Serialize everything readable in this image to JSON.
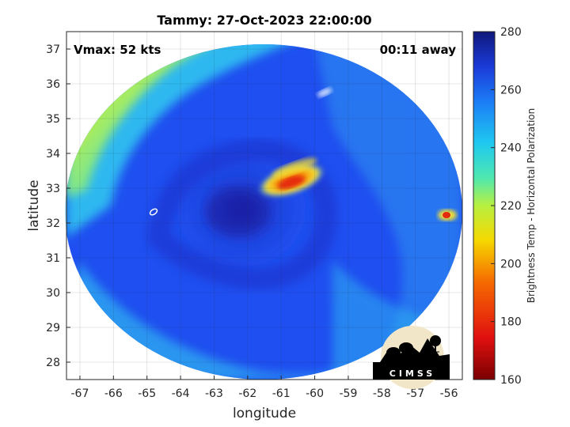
{
  "title": "Tammy: 27-Oct-2023 22:00:00",
  "vmax_label": "Vmax: 52 kts",
  "away_label": "00:11 away",
  "xlabel": "longitude",
  "ylabel": "latitude",
  "x_ticks": [
    "-67",
    "-66",
    "-65",
    "-64",
    "-63",
    "-62",
    "-61",
    "-60",
    "-59",
    "-58",
    "-57",
    "-56"
  ],
  "y_ticks": [
    "28",
    "29",
    "30",
    "31",
    "32",
    "33",
    "34",
    "35",
    "36",
    "37"
  ],
  "colorbar": {
    "label": "Brightness Temp - Horizontal Polarization",
    "ticks": [
      "160",
      "180",
      "200",
      "220",
      "240",
      "260",
      "280"
    ],
    "range": [
      160,
      280
    ]
  },
  "logo_text": "CIMSS",
  "colors": {
    "dark_blue": "#1a1f9e",
    "blue": "#1f4ff0",
    "cyan": "#2fb8f0",
    "green": "#4fdc9a",
    "yellow": "#f5e030",
    "red": "#e52a10"
  },
  "chart_data": {
    "type": "heatmap",
    "title": "Tammy: 27-Oct-2023 22:00:00",
    "xlabel": "longitude",
    "ylabel": "latitude",
    "xlim": [
      -67.4,
      -55.6
    ],
    "ylim": [
      27.5,
      37.5
    ],
    "colorbar_range": [
      160,
      280
    ],
    "colorbar_label": "Brightness Temp - Horizontal Polarization",
    "grid": true,
    "annotations": [
      "Vmax: 52 kts",
      "00:11 away"
    ]
  }
}
